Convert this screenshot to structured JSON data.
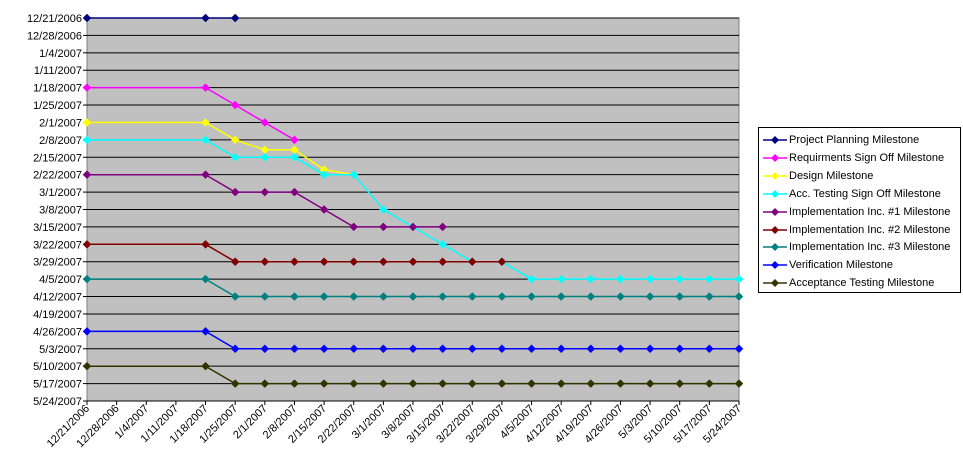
{
  "chart_data": {
    "type": "line",
    "title": "",
    "xlabel": "",
    "ylabel": "",
    "x": [
      "12/21/2006",
      "12/28/2006",
      "1/4/2007",
      "1/11/2007",
      "1/18/2007",
      "1/25/2007",
      "2/1/2007",
      "2/8/2007",
      "2/15/2007",
      "2/22/2007",
      "3/1/2007",
      "3/8/2007",
      "3/15/2007",
      "3/22/2007",
      "3/29/2007",
      "4/5/2007",
      "4/12/2007",
      "4/19/2007",
      "4/26/2007",
      "5/3/2007",
      "5/10/2007",
      "5/17/2007",
      "5/24/2007"
    ],
    "y_ticks": [
      "12/21/2006",
      "12/28/2006",
      "1/4/2007",
      "1/11/2007",
      "1/18/2007",
      "1/25/2007",
      "2/1/2007",
      "2/8/2007",
      "2/15/2007",
      "2/22/2007",
      "3/1/2007",
      "3/8/2007",
      "3/15/2007",
      "3/22/2007",
      "3/29/2007",
      "4/5/2007",
      "4/12/2007",
      "4/19/2007",
      "4/26/2007",
      "5/3/2007",
      "5/10/2007",
      "5/17/2007",
      "5/24/2007"
    ],
    "xlim": [
      "12/21/2006",
      "5/24/2007"
    ],
    "ylim": [
      "12/21/2006",
      "5/24/2007"
    ],
    "y_reversed": true,
    "grid": "horizontal",
    "plot_background": "#C0C0C0",
    "legend_position": "right",
    "series": [
      {
        "name": "Project Planning Milestone",
        "color": "#000080",
        "marker": "diamond",
        "points": [
          [
            "12/21/2006",
            "12/21/2006"
          ],
          [
            "1/18/2007",
            "12/21/2006"
          ],
          [
            "1/25/2007",
            "12/21/2006"
          ]
        ]
      },
      {
        "name": "Requirments Sign Off Milestone",
        "color": "#FF00FF",
        "marker": "diamond",
        "points": [
          [
            "12/21/2006",
            "1/18/2007"
          ],
          [
            "1/18/2007",
            "1/18/2007"
          ],
          [
            "1/25/2007",
            "1/25/2007"
          ],
          [
            "2/1/2007",
            "2/1/2007"
          ],
          [
            "2/8/2007",
            "2/8/2007"
          ]
        ]
      },
      {
        "name": "Design Milestone",
        "color": "#FFFF00",
        "marker": "diamond",
        "points": [
          [
            "12/21/2006",
            "2/1/2007"
          ],
          [
            "1/18/2007",
            "2/1/2007"
          ],
          [
            "1/25/2007",
            "2/8/2007"
          ],
          [
            "2/1/2007",
            "2/12/2007"
          ],
          [
            "2/8/2007",
            "2/12/2007"
          ],
          [
            "2/15/2007",
            "2/20/2007"
          ],
          [
            "2/22/2007",
            "2/22/2007"
          ]
        ]
      },
      {
        "name": "Acc. Testing Sign Off Milestone",
        "color": "#00FFFF",
        "marker": "diamond",
        "points": [
          [
            "12/21/2006",
            "2/8/2007"
          ],
          [
            "1/18/2007",
            "2/8/2007"
          ],
          [
            "1/25/2007",
            "2/15/2007"
          ],
          [
            "2/1/2007",
            "2/15/2007"
          ],
          [
            "2/8/2007",
            "2/15/2007"
          ],
          [
            "2/15/2007",
            "2/22/2007"
          ],
          [
            "2/22/2007",
            "2/22/2007"
          ],
          [
            "3/1/2007",
            "3/8/2007"
          ],
          [
            "3/8/2007",
            "3/15/2007"
          ],
          [
            "3/15/2007",
            "3/22/2007"
          ],
          [
            "3/22/2007",
            "3/29/2007"
          ],
          [
            "3/29/2007",
            "3/29/2007"
          ],
          [
            "4/5/2007",
            "4/5/2007"
          ],
          [
            "4/12/2007",
            "4/5/2007"
          ],
          [
            "4/19/2007",
            "4/5/2007"
          ],
          [
            "4/26/2007",
            "4/5/2007"
          ],
          [
            "5/3/2007",
            "4/5/2007"
          ],
          [
            "5/10/2007",
            "4/5/2007"
          ],
          [
            "5/17/2007",
            "4/5/2007"
          ],
          [
            "5/24/2007",
            "4/5/2007"
          ]
        ]
      },
      {
        "name": "Implementation Inc. #1 Milestone",
        "color": "#800080",
        "marker": "diamond",
        "points": [
          [
            "12/21/2006",
            "2/22/2007"
          ],
          [
            "1/18/2007",
            "2/22/2007"
          ],
          [
            "1/25/2007",
            "3/1/2007"
          ],
          [
            "2/1/2007",
            "3/1/2007"
          ],
          [
            "2/8/2007",
            "3/1/2007"
          ],
          [
            "2/15/2007",
            "3/8/2007"
          ],
          [
            "2/22/2007",
            "3/15/2007"
          ],
          [
            "3/1/2007",
            "3/15/2007"
          ],
          [
            "3/8/2007",
            "3/15/2007"
          ],
          [
            "3/15/2007",
            "3/15/2007"
          ]
        ]
      },
      {
        "name": "Implementation Inc. #2 Milestone",
        "color": "#800000",
        "marker": "diamond",
        "points": [
          [
            "12/21/2006",
            "3/22/2007"
          ],
          [
            "1/18/2007",
            "3/22/2007"
          ],
          [
            "1/25/2007",
            "3/29/2007"
          ],
          [
            "2/1/2007",
            "3/29/2007"
          ],
          [
            "2/8/2007",
            "3/29/2007"
          ],
          [
            "2/15/2007",
            "3/29/2007"
          ],
          [
            "2/22/2007",
            "3/29/2007"
          ],
          [
            "3/1/2007",
            "3/29/2007"
          ],
          [
            "3/8/2007",
            "3/29/2007"
          ],
          [
            "3/15/2007",
            "3/29/2007"
          ],
          [
            "3/22/2007",
            "3/29/2007"
          ],
          [
            "3/29/2007",
            "3/29/2007"
          ]
        ]
      },
      {
        "name": "Implementation Inc. #3 Milestone",
        "color": "#008080",
        "marker": "diamond",
        "points": [
          [
            "12/21/2006",
            "4/5/2007"
          ],
          [
            "1/18/2007",
            "4/5/2007"
          ],
          [
            "1/25/2007",
            "4/12/2007"
          ],
          [
            "2/1/2007",
            "4/12/2007"
          ],
          [
            "2/8/2007",
            "4/12/2007"
          ],
          [
            "2/15/2007",
            "4/12/2007"
          ],
          [
            "2/22/2007",
            "4/12/2007"
          ],
          [
            "3/1/2007",
            "4/12/2007"
          ],
          [
            "3/8/2007",
            "4/12/2007"
          ],
          [
            "3/15/2007",
            "4/12/2007"
          ],
          [
            "3/22/2007",
            "4/12/2007"
          ],
          [
            "3/29/2007",
            "4/12/2007"
          ],
          [
            "4/5/2007",
            "4/12/2007"
          ],
          [
            "4/12/2007",
            "4/12/2007"
          ],
          [
            "4/19/2007",
            "4/12/2007"
          ],
          [
            "4/26/2007",
            "4/12/2007"
          ],
          [
            "5/3/2007",
            "4/12/2007"
          ],
          [
            "5/10/2007",
            "4/12/2007"
          ],
          [
            "5/17/2007",
            "4/12/2007"
          ],
          [
            "5/24/2007",
            "4/12/2007"
          ]
        ]
      },
      {
        "name": "Verification Milestone",
        "color": "#0000FF",
        "marker": "diamond",
        "points": [
          [
            "12/21/2006",
            "4/26/2007"
          ],
          [
            "1/18/2007",
            "4/26/2007"
          ],
          [
            "1/25/2007",
            "5/3/2007"
          ],
          [
            "2/1/2007",
            "5/3/2007"
          ],
          [
            "2/8/2007",
            "5/3/2007"
          ],
          [
            "2/15/2007",
            "5/3/2007"
          ],
          [
            "2/22/2007",
            "5/3/2007"
          ],
          [
            "3/1/2007",
            "5/3/2007"
          ],
          [
            "3/8/2007",
            "5/3/2007"
          ],
          [
            "3/15/2007",
            "5/3/2007"
          ],
          [
            "3/22/2007",
            "5/3/2007"
          ],
          [
            "3/29/2007",
            "5/3/2007"
          ],
          [
            "4/5/2007",
            "5/3/2007"
          ],
          [
            "4/12/2007",
            "5/3/2007"
          ],
          [
            "4/19/2007",
            "5/3/2007"
          ],
          [
            "4/26/2007",
            "5/3/2007"
          ],
          [
            "5/3/2007",
            "5/3/2007"
          ],
          [
            "5/10/2007",
            "5/3/2007"
          ],
          [
            "5/17/2007",
            "5/3/2007"
          ],
          [
            "5/24/2007",
            "5/3/2007"
          ]
        ]
      },
      {
        "name": "Acceptance Testing Milestone",
        "color": "#333300",
        "marker": "diamond",
        "points": [
          [
            "12/21/2006",
            "5/10/2007"
          ],
          [
            "1/18/2007",
            "5/10/2007"
          ],
          [
            "1/25/2007",
            "5/17/2007"
          ],
          [
            "2/1/2007",
            "5/17/2007"
          ],
          [
            "2/8/2007",
            "5/17/2007"
          ],
          [
            "2/15/2007",
            "5/17/2007"
          ],
          [
            "2/22/2007",
            "5/17/2007"
          ],
          [
            "3/1/2007",
            "5/17/2007"
          ],
          [
            "3/8/2007",
            "5/17/2007"
          ],
          [
            "3/15/2007",
            "5/17/2007"
          ],
          [
            "3/22/2007",
            "5/17/2007"
          ],
          [
            "3/29/2007",
            "5/17/2007"
          ],
          [
            "4/5/2007",
            "5/17/2007"
          ],
          [
            "4/12/2007",
            "5/17/2007"
          ],
          [
            "4/19/2007",
            "5/17/2007"
          ],
          [
            "4/26/2007",
            "5/17/2007"
          ],
          [
            "5/3/2007",
            "5/17/2007"
          ],
          [
            "5/10/2007",
            "5/17/2007"
          ],
          [
            "5/17/2007",
            "5/17/2007"
          ],
          [
            "5/24/2007",
            "5/17/2007"
          ]
        ]
      }
    ]
  }
}
